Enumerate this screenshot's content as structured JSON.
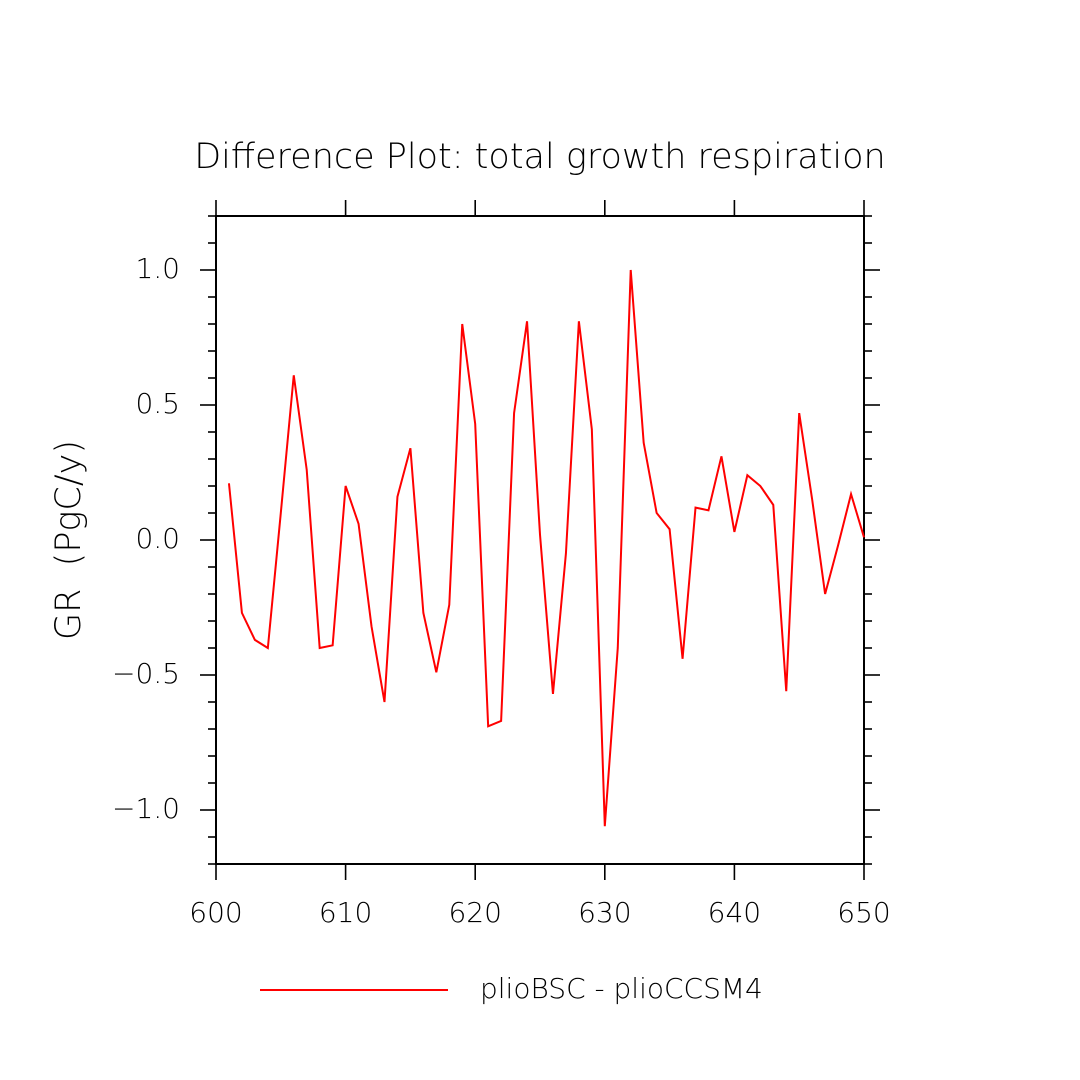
{
  "chart_data": {
    "type": "line",
    "title": "Difference Plot: total growth respiration",
    "y_label": "GR  (PgC/y)",
    "x": [
      601,
      602,
      603,
      604,
      605,
      606,
      607,
      608,
      609,
      610,
      611,
      612,
      613,
      614,
      615,
      616,
      617,
      618,
      619,
      620,
      621,
      622,
      623,
      624,
      625,
      626,
      627,
      628,
      629,
      630,
      631,
      632,
      633,
      634,
      635,
      636,
      637,
      638,
      639,
      640,
      641,
      642,
      643,
      644,
      645,
      646,
      647,
      648,
      649,
      650
    ],
    "series": [
      {
        "name": "plioBSC - plioCCSM4",
        "color": "#ff0000",
        "values": [
          0.21,
          -0.27,
          -0.37,
          -0.4,
          0.1,
          0.61,
          0.26,
          -0.4,
          -0.39,
          0.2,
          0.06,
          -0.32,
          -0.6,
          0.16,
          0.34,
          -0.27,
          -0.49,
          -0.24,
          0.8,
          0.43,
          -0.69,
          -0.67,
          0.47,
          0.81,
          0.02,
          -0.57,
          -0.05,
          0.81,
          0.41,
          -1.06,
          -0.4,
          1.0,
          0.36,
          0.1,
          0.04,
          -0.44,
          0.12,
          0.11,
          0.31,
          0.03,
          0.24,
          0.2,
          0.13,
          -0.56,
          0.47,
          0.15,
          -0.2,
          -0.02,
          0.17,
          0.01
        ]
      }
    ],
    "xlim": [
      600,
      650
    ],
    "xticks": [
      600,
      610,
      620,
      630,
      640,
      650
    ],
    "ylim": [
      -1.2,
      1.2
    ],
    "yticks": [
      {
        "value": -1.0,
        "label": "−1.0"
      },
      {
        "value": -0.5,
        "label": "−0.5"
      },
      {
        "value": 0.0,
        "label": "0.0"
      },
      {
        "value": 0.5,
        "label": "0.5"
      },
      {
        "value": 1.0,
        "label": "1.0"
      }
    ],
    "yminorticks": [
      -1.2,
      -1.1,
      -0.9,
      -0.8,
      -0.7,
      -0.6,
      -0.4,
      -0.3,
      -0.2,
      -0.1,
      0.1,
      0.2,
      0.3,
      0.4,
      0.6,
      0.7,
      0.8,
      0.9,
      1.1,
      1.2
    ],
    "grid": false
  }
}
